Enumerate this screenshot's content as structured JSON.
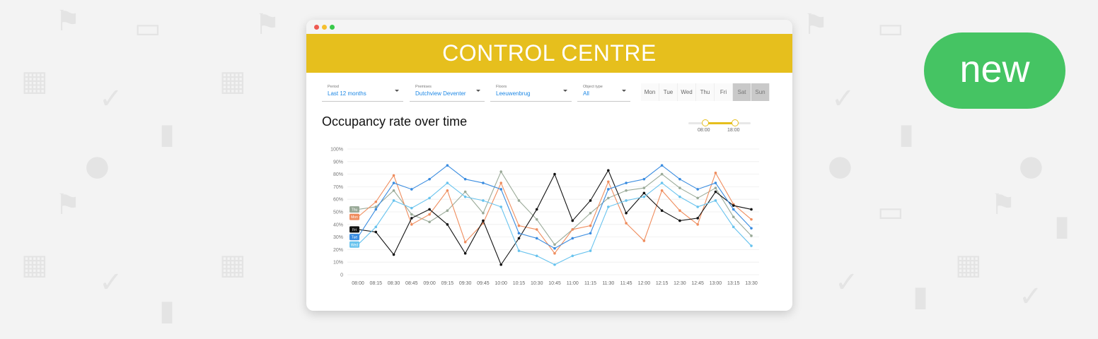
{
  "header": {
    "title": "CONTROL CENTRE"
  },
  "badge": {
    "label": "new"
  },
  "filters": [
    {
      "label": "Period",
      "value": "Last 12 months"
    },
    {
      "label": "Premises",
      "value": "Dutchview Deventer"
    },
    {
      "label": "Floors",
      "value": "Leeuwenbrug"
    },
    {
      "label": "Object type",
      "value": "All"
    }
  ],
  "days": [
    {
      "label": "Mon",
      "selected": false
    },
    {
      "label": "Tue",
      "selected": false
    },
    {
      "label": "Wed",
      "selected": false
    },
    {
      "label": "Thu",
      "selected": false
    },
    {
      "label": "Fri",
      "selected": false
    },
    {
      "label": "Sat",
      "selected": true
    },
    {
      "label": "Sun",
      "selected": true
    }
  ],
  "chart_title": "Occupancy rate over time",
  "time_range": {
    "start": "08:00",
    "end": "18:00"
  },
  "chart_data": {
    "type": "line",
    "title": "Occupancy rate over time",
    "xlabel": "",
    "ylabel": "",
    "ylim": [
      0,
      100
    ],
    "yticks": [
      "0",
      "10%",
      "20%",
      "30%",
      "40%",
      "50%",
      "60%",
      "70%",
      "80%",
      "90%",
      "100%"
    ],
    "grid": true,
    "categories": [
      "08:00",
      "08:15",
      "08:30",
      "08:45",
      "09:00",
      "09:15",
      "09:30",
      "09:45",
      "10:00",
      "10:15",
      "10:30",
      "10:45",
      "11:00",
      "11:15",
      "11:30",
      "11:45",
      "12:00",
      "12:15",
      "12:30",
      "12:45",
      "13:00",
      "13:15",
      "13:30"
    ],
    "series": [
      {
        "name": "Thu",
        "color": "#9aaa98",
        "values": [
          52,
          54,
          67,
          48,
          42,
          51,
          66,
          49,
          82,
          59,
          44,
          24,
          36,
          49,
          61,
          67,
          69,
          80,
          69,
          61,
          69,
          46,
          31
        ]
      },
      {
        "name": "Mon",
        "color": "#ef8d5e",
        "values": [
          46,
          58,
          79,
          40,
          48,
          67,
          26,
          41,
          73,
          39,
          36,
          17,
          36,
          39,
          74,
          41,
          27,
          67,
          51,
          40,
          81,
          56,
          44
        ]
      },
      {
        "name": "Fri",
        "color": "#111111",
        "values": [
          36,
          34,
          16,
          45,
          52,
          40,
          17,
          43,
          8,
          29,
          52,
          80,
          43,
          59,
          83,
          49,
          65,
          51,
          43,
          45,
          66,
          55,
          52
        ]
      },
      {
        "name": "Tue",
        "color": "#3a8ce0",
        "values": [
          30,
          52,
          73,
          68,
          76,
          87,
          76,
          73,
          68,
          33,
          29,
          21,
          29,
          33,
          68,
          73,
          76,
          87,
          76,
          68,
          73,
          52,
          37
        ]
      },
      {
        "name": "Wed",
        "color": "#68c3ee",
        "values": [
          24,
          38,
          59,
          53,
          61,
          73,
          62,
          59,
          54,
          19,
          15,
          8,
          15,
          19,
          54,
          59,
          62,
          73,
          62,
          54,
          59,
          38,
          23
        ]
      }
    ]
  }
}
